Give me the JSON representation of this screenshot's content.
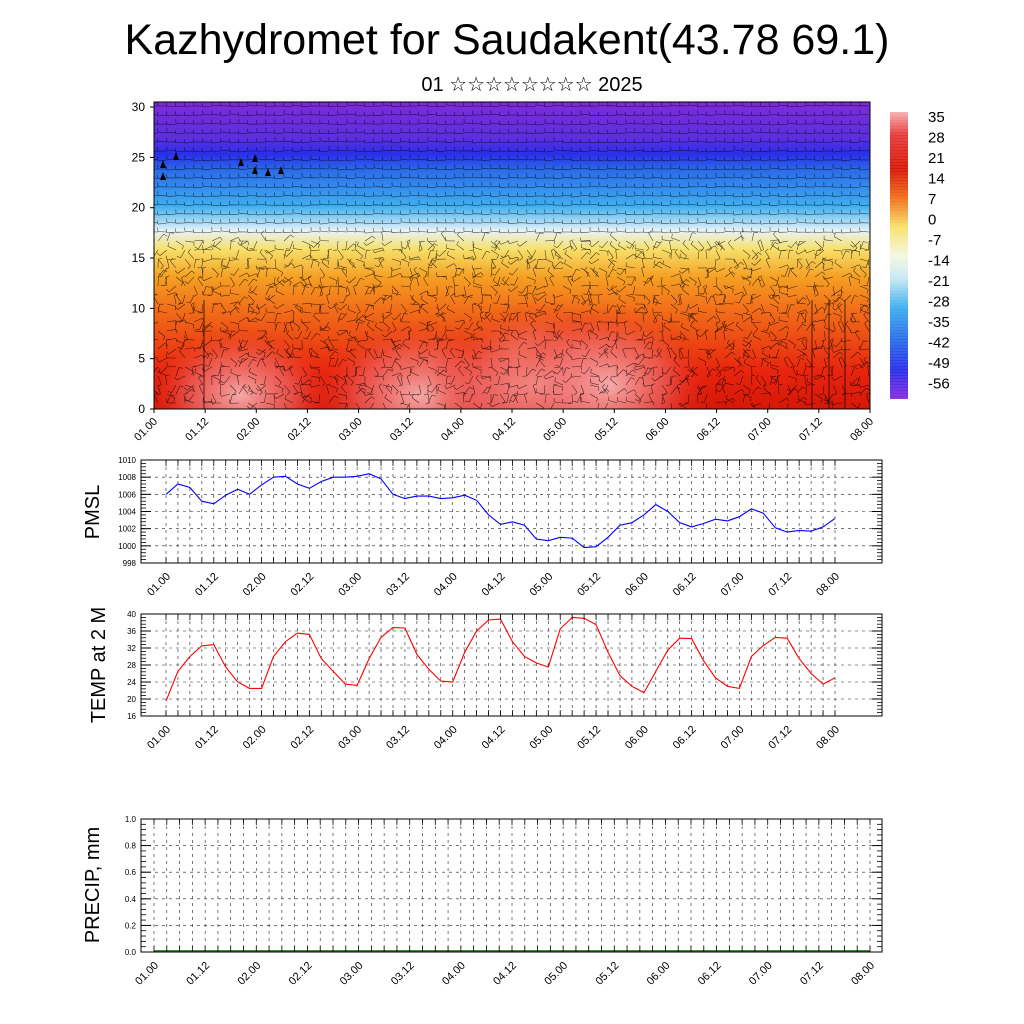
{
  "header": {
    "title": "Kazhydromet for Saudakent(43.78 69.1)",
    "subtitle": "01 ☆☆☆☆☆☆☆☆ 2025"
  },
  "chart_data": [
    {
      "type": "heatmap",
      "name": "cross-section",
      "xlabel": "",
      "ylabel": "",
      "x_ticks": [
        "01.00",
        "01.12",
        "02.00",
        "02.12",
        "03.00",
        "03.12",
        "04.00",
        "04.12",
        "05.00",
        "05.12",
        "06.00",
        "06.12",
        "07.00",
        "07.12",
        "08.00"
      ],
      "y_ticks": [
        0,
        5,
        10,
        15,
        20,
        25,
        30
      ],
      "ylim": [
        0,
        30.5
      ],
      "colorbar_labels": [
        "35",
        "28",
        "21",
        "14",
        "7",
        "0",
        "-7",
        "-14",
        "-21",
        "-28",
        "-35",
        "-42",
        "-49",
        "-56"
      ],
      "colors": {
        "top": "#7f2bd8",
        "upper_blue": "#2a2fe8",
        "sky": "#3fb0f0",
        "pale": "#e8f3f6",
        "yellow": "#f7e06a",
        "orange": "#f5a023",
        "red": "#e8240e",
        "pink": "#f08080"
      },
      "overlay": "wind barbs"
    },
    {
      "type": "line",
      "name": "PMSL",
      "ylabel": "PMSL",
      "ylim": [
        998,
        1010
      ],
      "y_ticks": [
        998,
        1000,
        1002,
        1004,
        1006,
        1008,
        1010
      ],
      "x_ticks": [
        "01.00",
        "01.12",
        "02.00",
        "02.12",
        "03.00",
        "03.12",
        "04.00",
        "04.12",
        "05.00",
        "05.12",
        "06.00",
        "06.12",
        "07.00",
        "07.12",
        "08.00"
      ],
      "color": "#0000ff",
      "x": [
        0,
        3,
        6,
        9,
        12,
        15,
        18,
        21,
        24,
        27,
        30,
        33,
        36,
        39,
        42,
        45,
        48,
        51,
        54,
        57,
        60,
        63,
        66,
        69,
        72,
        75,
        78,
        81,
        84,
        87,
        90,
        93,
        96,
        99,
        102,
        105,
        108,
        111,
        114,
        117,
        120,
        123,
        126,
        129,
        132,
        135,
        138,
        141,
        144,
        147,
        150,
        153,
        156,
        159,
        162,
        165,
        168
      ],
      "values": [
        1006.0,
        1007.2,
        1006.8,
        1005.2,
        1004.9,
        1005.9,
        1006.6,
        1006.0,
        1007.1,
        1008.0,
        1008.1,
        1007.2,
        1006.7,
        1007.5,
        1008.0,
        1008.0,
        1008.1,
        1008.4,
        1007.8,
        1006.0,
        1005.5,
        1005.8,
        1005.8,
        1005.5,
        1005.6,
        1005.9,
        1005.3,
        1003.6,
        1002.5,
        1002.8,
        1002.4,
        1000.8,
        1000.6,
        1001.0,
        1000.9,
        999.8,
        999.9,
        1001.0,
        1002.4,
        1002.7,
        1003.6,
        1004.8,
        1004.0,
        1002.7,
        1002.2,
        1002.6,
        1003.1,
        1002.9,
        1003.4,
        1004.3,
        1003.8,
        1002.1,
        1001.6,
        1001.8,
        1001.7,
        1002.2,
        1003.2
      ]
    },
    {
      "type": "line",
      "name": "TEMP at 2 M",
      "ylabel": "TEMP at 2 M",
      "ylim": [
        16,
        40
      ],
      "y_ticks": [
        16,
        20,
        24,
        28,
        32,
        36,
        40
      ],
      "x_ticks": [
        "01.00",
        "01.12",
        "02.00",
        "02.12",
        "03.00",
        "03.12",
        "04.00",
        "04.12",
        "05.00",
        "05.12",
        "06.00",
        "06.12",
        "07.00",
        "07.12",
        "08.00"
      ],
      "color": "#ff0000",
      "x": [
        0,
        3,
        6,
        9,
        12,
        15,
        18,
        21,
        24,
        27,
        30,
        33,
        36,
        39,
        42,
        45,
        48,
        51,
        54,
        57,
        60,
        63,
        66,
        69,
        72,
        75,
        78,
        81,
        84,
        87,
        90,
        93,
        96,
        99,
        102,
        105,
        108,
        111,
        114,
        117,
        120,
        123,
        126,
        129,
        132,
        135,
        138,
        141,
        144,
        147,
        150,
        153,
        156,
        159,
        162,
        165,
        168
      ],
      "values": [
        19.5,
        26.5,
        30.0,
        32.5,
        32.8,
        27.5,
        24.0,
        22.5,
        22.5,
        30.0,
        33.5,
        35.5,
        35.2,
        29.5,
        26.5,
        23.5,
        23.2,
        29.5,
        34.5,
        36.8,
        36.7,
        30.5,
        27.0,
        24.2,
        24.0,
        31.0,
        36.0,
        38.6,
        38.8,
        33.5,
        30.0,
        28.5,
        27.5,
        36.5,
        39.2,
        39.0,
        37.5,
        31.0,
        25.5,
        23.0,
        21.5,
        26.5,
        31.5,
        34.3,
        34.2,
        29.0,
        25.0,
        23.0,
        22.5,
        30.0,
        32.6,
        34.5,
        34.3,
        29.5,
        26.0,
        23.5,
        25.0
      ]
    },
    {
      "type": "line",
      "name": "PRECIP, mm",
      "ylabel": "PRECIP, mm",
      "ylim": [
        0.0,
        1.0
      ],
      "y_ticks": [
        "0.0",
        "0.2",
        "0.4",
        "0.6",
        "0.8",
        "1.0"
      ],
      "x_ticks": [
        "01.00",
        "01.12",
        "02.00",
        "02.12",
        "03.00",
        "03.12",
        "04.00",
        "04.12",
        "05.00",
        "05.12",
        "06.00",
        "06.12",
        "07.00",
        "07.12",
        "08.00"
      ],
      "color": "#006400",
      "values": []
    }
  ]
}
